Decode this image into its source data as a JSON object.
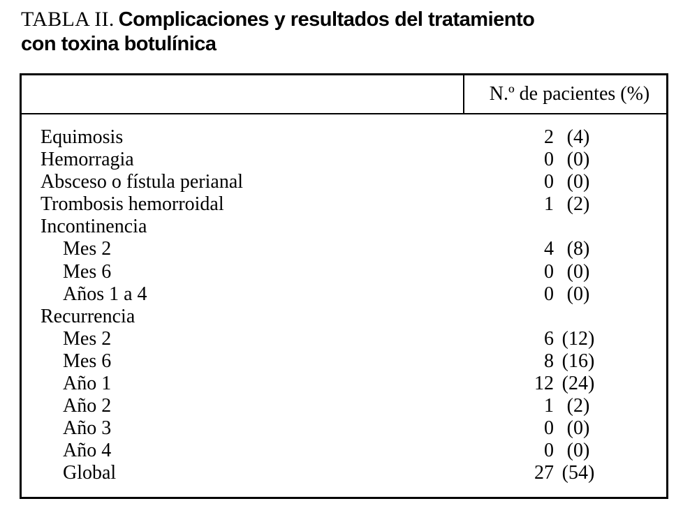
{
  "title": {
    "label": "TABLA II.",
    "line1": "Complicaciones y resultados del tratamiento",
    "line2": "con toxina botulínica"
  },
  "colors": {
    "text": "#000000",
    "background": "#ffffff",
    "border": "#000000"
  },
  "table": {
    "header": {
      "col1": "",
      "col2": "N.º de pacientes (%)"
    },
    "rows": [
      {
        "label": "Equimosis",
        "indent": false,
        "n": "2",
        "pct": "(4)"
      },
      {
        "label": "Hemorragia",
        "indent": false,
        "n": "0",
        "pct": "(0)"
      },
      {
        "label": "Absceso o fístula perianal",
        "indent": false,
        "n": "0",
        "pct": "(0)"
      },
      {
        "label": "Trombosis hemorroidal",
        "indent": false,
        "n": "1",
        "pct": "(2)"
      },
      {
        "label": "Incontinencia",
        "indent": false,
        "n": "",
        "pct": ""
      },
      {
        "label": "Mes 2",
        "indent": true,
        "n": "4",
        "pct": "(8)"
      },
      {
        "label": "Mes 6",
        "indent": true,
        "n": "0",
        "pct": "(0)"
      },
      {
        "label": "Años 1 a 4",
        "indent": true,
        "n": "0",
        "pct": "(0)"
      },
      {
        "label": "Recurrencia",
        "indent": false,
        "n": "",
        "pct": ""
      },
      {
        "label": "Mes 2",
        "indent": true,
        "n": "6",
        "pct": "(12)"
      },
      {
        "label": "Mes 6",
        "indent": true,
        "n": "8",
        "pct": "(16)"
      },
      {
        "label": "Año 1",
        "indent": true,
        "n": "12",
        "pct": "(24)"
      },
      {
        "label": "Año 2",
        "indent": true,
        "n": "1",
        "pct": "(2)"
      },
      {
        "label": "Año 3",
        "indent": true,
        "n": "0",
        "pct": "(0)"
      },
      {
        "label": "Año 4",
        "indent": true,
        "n": "0",
        "pct": "(0)"
      },
      {
        "label": "Global",
        "indent": true,
        "n": "27",
        "pct": "(54)"
      }
    ]
  }
}
